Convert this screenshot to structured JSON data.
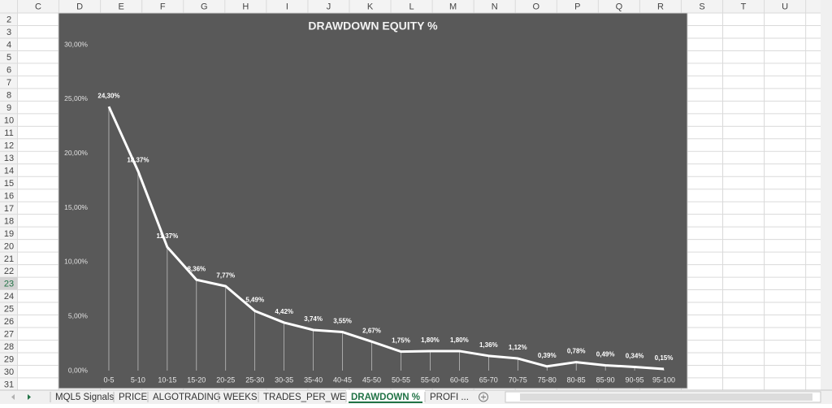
{
  "columns": [
    "C",
    "D",
    "E",
    "F",
    "G",
    "H",
    "I",
    "J",
    "K",
    "L",
    "M",
    "N",
    "O",
    "P",
    "Q",
    "R",
    "S",
    "T",
    "U"
  ],
  "rows": [
    "2",
    "3",
    "4",
    "5",
    "6",
    "7",
    "8",
    "9",
    "10",
    "11",
    "12",
    "13",
    "14",
    "15",
    "16",
    "17",
    "18",
    "19",
    "20",
    "21",
    "22",
    "23",
    "24",
    "25",
    "26",
    "27",
    "28",
    "29",
    "30",
    "31"
  ],
  "sheet_tabs": [
    "MQL5 Signals",
    "PRICE",
    "ALGOTRADING",
    "WEEKS",
    "TRADES_PER_WEEK",
    "DRAWDOWN %",
    "PROFI ..."
  ],
  "chart_data": {
    "type": "line",
    "title": "DRAWDOWN EQUITY %",
    "categories": [
      "0-5",
      "5-10",
      "10-15",
      "15-20",
      "20-25",
      "25-30",
      "30-35",
      "35-40",
      "40-45",
      "45-50",
      "50-55",
      "55-60",
      "60-65",
      "65-70",
      "70-75",
      "75-80",
      "80-85",
      "85-90",
      "90-95",
      "95-100"
    ],
    "values": [
      24.3,
      18.37,
      11.37,
      8.36,
      7.77,
      5.49,
      4.42,
      3.74,
      3.55,
      2.67,
      1.75,
      1.8,
      1.8,
      1.36,
      1.12,
      0.39,
      0.78,
      0.49,
      0.34,
      0.15
    ],
    "value_labels": [
      "24,30%",
      "18,37%",
      "11,37%",
      "8,36%",
      "7,77%",
      "5,49%",
      "4,42%",
      "3,74%",
      "3,55%",
      "2,67%",
      "1,75%",
      "1,80%",
      "1,80%",
      "1,36%",
      "1,12%",
      "0,39%",
      "0,78%",
      "0,49%",
      "0,34%",
      "0,15%"
    ],
    "color": "#ffffff",
    "ylim": [
      0,
      30
    ],
    "yticks": [
      {
        "value": 0,
        "label": "0,00%"
      },
      {
        "value": 5,
        "label": "5,00%"
      },
      {
        "value": 10,
        "label": "10,00%"
      },
      {
        "value": 15,
        "label": "15,00%"
      },
      {
        "value": 20,
        "label": "20,00%"
      },
      {
        "value": 25,
        "label": "25,00%"
      },
      {
        "value": 30,
        "label": "30,00%"
      }
    ]
  }
}
